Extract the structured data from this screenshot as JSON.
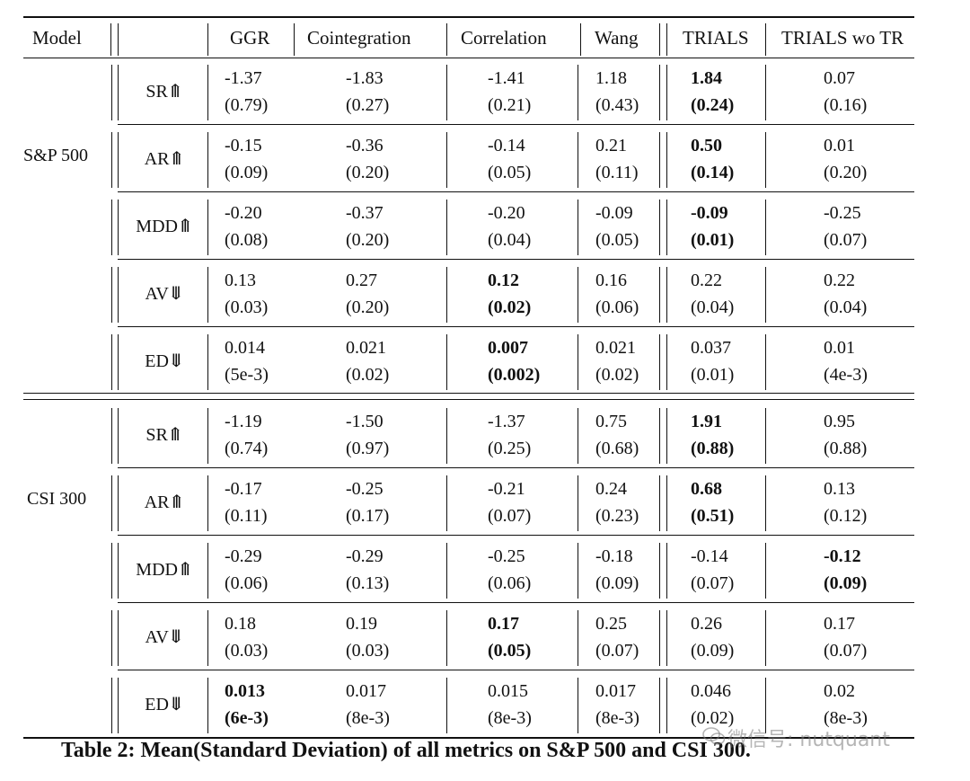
{
  "headers": [
    "Model",
    "GGR",
    "Cointegration",
    "Correlation",
    "Wang",
    "TRIALS",
    "TRIALS wo TR"
  ],
  "datasets": [
    {
      "name": "S&P 500",
      "rows": [
        {
          "metric": "SR⤊",
          "cells": [
            [
              "-1.37",
              "(0.79)",
              false
            ],
            [
              "-1.83",
              "(0.27)",
              false
            ],
            [
              "-1.41",
              "(0.21)",
              false
            ],
            [
              "1.18",
              "(0.43)",
              false
            ],
            [
              "1.84",
              "(0.24)",
              true
            ],
            [
              "0.07",
              "(0.16)",
              false
            ]
          ]
        },
        {
          "metric": "AR⤊",
          "cells": [
            [
              "-0.15",
              "(0.09)",
              false
            ],
            [
              "-0.36",
              "(0.20)",
              false
            ],
            [
              "-0.14",
              "(0.05)",
              false
            ],
            [
              "0.21",
              "(0.11)",
              false
            ],
            [
              "0.50",
              "(0.14)",
              true
            ],
            [
              "0.01",
              "(0.20)",
              false
            ]
          ]
        },
        {
          "metric": "MDD⤊",
          "cells": [
            [
              "-0.20",
              "(0.08)",
              false
            ],
            [
              "-0.37",
              "(0.20)",
              false
            ],
            [
              "-0.20",
              "(0.04)",
              false
            ],
            [
              "-0.09",
              "(0.05)",
              false
            ],
            [
              "-0.09",
              "(0.01)",
              true
            ],
            [
              "-0.25",
              "(0.07)",
              false
            ]
          ]
        },
        {
          "metric": "AV⤋",
          "cells": [
            [
              "0.13",
              "(0.03)",
              false
            ],
            [
              "0.27",
              "(0.20)",
              false
            ],
            [
              "0.12",
              "(0.02)",
              true
            ],
            [
              "0.16",
              "(0.06)",
              false
            ],
            [
              "0.22",
              "(0.04)",
              false
            ],
            [
              "0.22",
              "(0.04)",
              false
            ]
          ]
        },
        {
          "metric": "ED⤋",
          "cells": [
            [
              "0.014",
              "(5e-3)",
              false
            ],
            [
              "0.021",
              "(0.02)",
              false
            ],
            [
              "0.007",
              "(0.002)",
              true
            ],
            [
              "0.021",
              "(0.02)",
              false
            ],
            [
              "0.037",
              "(0.01)",
              false
            ],
            [
              "0.01",
              "(4e-3)",
              false
            ]
          ]
        }
      ]
    },
    {
      "name": "CSI 300",
      "rows": [
        {
          "metric": "SR⤊",
          "cells": [
            [
              "-1.19",
              "(0.74)",
              false
            ],
            [
              "-1.50",
              "(0.97)",
              false
            ],
            [
              "-1.37",
              "(0.25)",
              false
            ],
            [
              "0.75",
              "(0.68)",
              false
            ],
            [
              "1.91",
              "(0.88)",
              true
            ],
            [
              "0.95",
              "(0.88)",
              false
            ]
          ]
        },
        {
          "metric": "AR⤊",
          "cells": [
            [
              "-0.17",
              "(0.11)",
              false
            ],
            [
              "-0.25",
              "(0.17)",
              false
            ],
            [
              "-0.21",
              "(0.07)",
              false
            ],
            [
              "0.24",
              "(0.23)",
              false
            ],
            [
              "0.68",
              "(0.51)",
              true
            ],
            [
              "0.13",
              "(0.12)",
              false
            ]
          ]
        },
        {
          "metric": "MDD⤊",
          "cells": [
            [
              "-0.29",
              "(0.06)",
              false
            ],
            [
              "-0.29",
              "(0.13)",
              false
            ],
            [
              "-0.25",
              "(0.06)",
              false
            ],
            [
              "-0.18",
              "(0.09)",
              false
            ],
            [
              "-0.14",
              "(0.07)",
              false
            ],
            [
              "-0.12",
              "(0.09)",
              true
            ]
          ]
        },
        {
          "metric": "AV⤋",
          "cells": [
            [
              "0.18",
              "(0.03)",
              false
            ],
            [
              "0.19",
              "(0.03)",
              false
            ],
            [
              "0.17",
              "(0.05)",
              true
            ],
            [
              "0.25",
              "(0.07)",
              false
            ],
            [
              "0.26",
              "(0.09)",
              false
            ],
            [
              "0.17",
              "(0.07)",
              false
            ]
          ]
        },
        {
          "metric": "ED⤋",
          "cells": [
            [
              "0.013",
              "(6e-3)",
              true
            ],
            [
              "0.017",
              "(8e-3)",
              false
            ],
            [
              "0.015",
              "(8e-3)",
              false
            ],
            [
              "0.017",
              "(8e-3)",
              false
            ],
            [
              "0.046",
              "(0.02)",
              false
            ],
            [
              "0.02",
              "(8e-3)",
              false
            ]
          ]
        }
      ]
    }
  ],
  "caption": "Table 2: Mean(Standard Deviation) of all metrics on S&P 500 and CSI 300.",
  "watermark": "微信号: nutquant"
}
